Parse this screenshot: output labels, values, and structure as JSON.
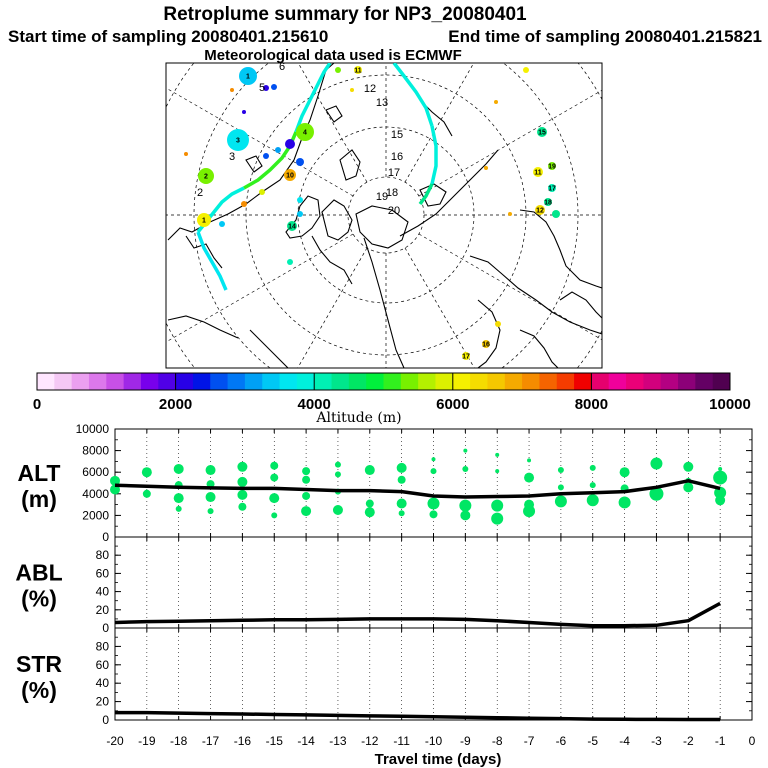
{
  "header": {
    "title": "Retroplume summary for NP3_20080401",
    "start_label": "Start time of sampling 20080401.215610",
    "end_label": "End time of sampling 20080401.215821",
    "met_label": "Meteorological data used is ECMWF"
  },
  "colorbar": {
    "ticks": [
      "0",
      "2000",
      "4000",
      "6000",
      "8000",
      "10000"
    ],
    "label": "Altitude (m)",
    "colors": [
      "#ffe6ff",
      "#f5c8f5",
      "#eba0f0",
      "#dc78eb",
      "#c850e6",
      "#a028e6",
      "#7800eb",
      "#5000e6",
      "#2800e6",
      "#0014e6",
      "#0050f0",
      "#0078f5",
      "#00a0f5",
      "#00c8f5",
      "#00e6f0",
      "#00f0dc",
      "#00f0b4",
      "#00e68c",
      "#00e664",
      "#00f03c",
      "#32f01e",
      "#78f000",
      "#b4f000",
      "#dcf000",
      "#f5f000",
      "#f5dc00",
      "#f5c800",
      "#f5aa00",
      "#f58c00",
      "#f56400",
      "#f53c00",
      "#f00000",
      "#e6006e",
      "#f0009b",
      "#eb0078",
      "#d2007d",
      "#b40082",
      "#8c0078",
      "#640064",
      "#500050"
    ]
  },
  "map": {
    "numbers": [
      "1",
      "2",
      "3",
      "4",
      "5",
      "6",
      "7",
      "8",
      "9",
      "10",
      "11",
      "12",
      "13",
      "14",
      "15",
      "16",
      "17",
      "18",
      "19",
      "20"
    ],
    "plumeA": {
      "colors": [
        "#00f0dc",
        "#32f01e",
        "#00f0dc",
        "#00e6f0"
      ]
    },
    "plumeB": {
      "colors": [
        "#00f0dc",
        "#00f0dc",
        "#00e68c"
      ]
    },
    "east_colors": [
      "#f5f000",
      "#78f000",
      "#00e68c",
      "#f5dc00",
      "#00f0b4",
      "#f5c800"
    ],
    "west_colors": [
      "#00a0f5",
      "#2800e6",
      "#0050f0",
      "#00c8f5",
      "#f5aa00",
      "#00e6f0",
      "#f58c00",
      "#dcf000"
    ]
  },
  "chart_data": [
    {
      "type": "scatter",
      "title": "ALT (m)",
      "ylabel_line1": "ALT",
      "ylabel_line2": "(m)",
      "xlabel": "Travel time (days)",
      "xlim": [
        -20,
        0
      ],
      "ylim": [
        0,
        10000
      ],
      "yticks": [
        "0",
        "2000",
        "4000",
        "6000",
        "8000",
        "10000"
      ],
      "xticks": [
        "-20",
        "-19",
        "-18",
        "-17",
        "-16",
        "-15",
        "-14",
        "-13",
        "-12",
        "-11",
        "-10",
        "-9",
        "-8",
        "-7",
        "-6",
        "-5",
        "-4",
        "-3",
        "-2",
        "-1",
        "0"
      ],
      "point_color": "#00e664",
      "line": {
        "x": [
          -20,
          -19,
          -18,
          -17,
          -16,
          -15,
          -14,
          -13,
          -12,
          -11,
          -10,
          -9,
          -8,
          -7,
          -6,
          -5,
          -4,
          -3,
          -2,
          -1
        ],
        "y": [
          4800,
          4700,
          4600,
          4550,
          4500,
          4500,
          4400,
          4300,
          4300,
          4200,
          3800,
          3700,
          3750,
          3800,
          4000,
          4100,
          4200,
          4600,
          5200,
          4500
        ]
      },
      "points": [
        {
          "x": -20,
          "y": 5200,
          "s": 5
        },
        {
          "x": -20,
          "y": 4400,
          "s": 5
        },
        {
          "x": -19,
          "y": 6000,
          "s": 5
        },
        {
          "x": -19,
          "y": 4000,
          "s": 4
        },
        {
          "x": -18,
          "y": 6300,
          "s": 5
        },
        {
          "x": -18,
          "y": 4800,
          "s": 4
        },
        {
          "x": -18,
          "y": 3600,
          "s": 5
        },
        {
          "x": -18,
          "y": 2600,
          "s": 3
        },
        {
          "x": -17,
          "y": 6200,
          "s": 5
        },
        {
          "x": -17,
          "y": 4900,
          "s": 4
        },
        {
          "x": -17,
          "y": 3700,
          "s": 5
        },
        {
          "x": -17,
          "y": 2400,
          "s": 3
        },
        {
          "x": -16,
          "y": 6500,
          "s": 5
        },
        {
          "x": -16,
          "y": 5100,
          "s": 5
        },
        {
          "x": -16,
          "y": 3900,
          "s": 5
        },
        {
          "x": -16,
          "y": 2800,
          "s": 4
        },
        {
          "x": -15,
          "y": 6600,
          "s": 4
        },
        {
          "x": -15,
          "y": 5500,
          "s": 4
        },
        {
          "x": -15,
          "y": 3600,
          "s": 5
        },
        {
          "x": -15,
          "y": 2000,
          "s": 3
        },
        {
          "x": -14,
          "y": 6100,
          "s": 4
        },
        {
          "x": -14,
          "y": 5300,
          "s": 4
        },
        {
          "x": -14,
          "y": 3800,
          "s": 4
        },
        {
          "x": -14,
          "y": 2400,
          "s": 5
        },
        {
          "x": -13,
          "y": 6700,
          "s": 3
        },
        {
          "x": -13,
          "y": 5800,
          "s": 3
        },
        {
          "x": -13,
          "y": 4200,
          "s": 3
        },
        {
          "x": -13,
          "y": 2500,
          "s": 5
        },
        {
          "x": -12,
          "y": 6200,
          "s": 5
        },
        {
          "x": -12,
          "y": 3100,
          "s": 4
        },
        {
          "x": -12,
          "y": 2300,
          "s": 5
        },
        {
          "x": -11,
          "y": 6400,
          "s": 5
        },
        {
          "x": -11,
          "y": 5300,
          "s": 4
        },
        {
          "x": -11,
          "y": 3100,
          "s": 5
        },
        {
          "x": -11,
          "y": 2200,
          "s": 3
        },
        {
          "x": -10,
          "y": 7200,
          "s": 2
        },
        {
          "x": -10,
          "y": 6100,
          "s": 3
        },
        {
          "x": -10,
          "y": 3100,
          "s": 6
        },
        {
          "x": -10,
          "y": 2100,
          "s": 4
        },
        {
          "x": -9,
          "y": 8000,
          "s": 2
        },
        {
          "x": -9,
          "y": 6300,
          "s": 3
        },
        {
          "x": -9,
          "y": 2900,
          "s": 6
        },
        {
          "x": -9,
          "y": 2000,
          "s": 5
        },
        {
          "x": -8,
          "y": 7600,
          "s": 2
        },
        {
          "x": -8,
          "y": 6100,
          "s": 2
        },
        {
          "x": -8,
          "y": 2900,
          "s": 6
        },
        {
          "x": -8,
          "y": 1700,
          "s": 6
        },
        {
          "x": -7,
          "y": 7100,
          "s": 2
        },
        {
          "x": -7,
          "y": 5500,
          "s": 5
        },
        {
          "x": -7,
          "y": 3000,
          "s": 5
        },
        {
          "x": -7,
          "y": 2400,
          "s": 6
        },
        {
          "x": -6,
          "y": 6200,
          "s": 3
        },
        {
          "x": -6,
          "y": 3300,
          "s": 6
        },
        {
          "x": -6,
          "y": 4600,
          "s": 3
        },
        {
          "x": -5,
          "y": 6400,
          "s": 3
        },
        {
          "x": -5,
          "y": 3400,
          "s": 6
        },
        {
          "x": -5,
          "y": 4800,
          "s": 3
        },
        {
          "x": -4,
          "y": 6000,
          "s": 5
        },
        {
          "x": -4,
          "y": 4500,
          "s": 4
        },
        {
          "x": -4,
          "y": 3200,
          "s": 6
        },
        {
          "x": -3,
          "y": 6800,
          "s": 6
        },
        {
          "x": -3,
          "y": 4000,
          "s": 7
        },
        {
          "x": -2,
          "y": 6500,
          "s": 5
        },
        {
          "x": -2,
          "y": 5200,
          "s": 3
        },
        {
          "x": -2,
          "y": 4600,
          "s": 5
        },
        {
          "x": -1,
          "y": 6300,
          "s": 2
        },
        {
          "x": -1,
          "y": 5500,
          "s": 7
        },
        {
          "x": -1,
          "y": 4100,
          "s": 6
        },
        {
          "x": -1,
          "y": 3400,
          "s": 5
        }
      ]
    },
    {
      "type": "line",
      "title": "ABL (%)",
      "ylabel_line1": "ABL",
      "ylabel_line2": "(%)",
      "xlim": [
        -20,
        0
      ],
      "ylim": [
        0,
        100
      ],
      "yticks": [
        "0",
        "20",
        "40",
        "60",
        "80"
      ],
      "x": [
        -20,
        -19,
        -18,
        -17,
        -16,
        -15,
        -14,
        -13,
        -12,
        -11,
        -10,
        -9,
        -8,
        -7,
        -6,
        -5,
        -4,
        -3,
        -2,
        -1
      ],
      "y": [
        6,
        7,
        7.5,
        8,
        8.5,
        9,
        9,
        9.5,
        10,
        10,
        10,
        9.5,
        8,
        6,
        4,
        2.5,
        2.5,
        3,
        8,
        27
      ]
    },
    {
      "type": "line",
      "title": "STR (%)",
      "ylabel_line1": "STR",
      "ylabel_line2": "(%)",
      "xlim": [
        -20,
        0
      ],
      "ylim": [
        0,
        100
      ],
      "yticks": [
        "0",
        "20",
        "40",
        "60",
        "80"
      ],
      "x": [
        -20,
        -19,
        -18,
        -17,
        -16,
        -15,
        -14,
        -13,
        -12,
        -11,
        -10,
        -9,
        -8,
        -7,
        -6,
        -5,
        -4,
        -3,
        -2,
        -1
      ],
      "y": [
        8,
        8,
        7.5,
        7,
        6.5,
        6,
        5.5,
        5,
        4.5,
        4,
        3.5,
        3,
        2.5,
        2,
        1.5,
        1,
        0.8,
        0.6,
        0.5,
        0.5
      ]
    }
  ]
}
